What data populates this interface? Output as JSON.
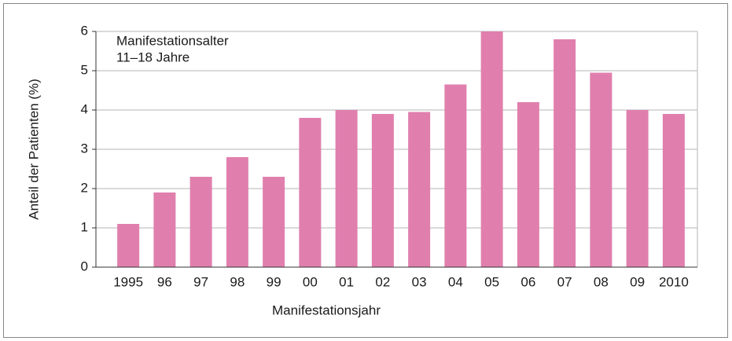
{
  "chart_data": {
    "type": "bar",
    "annotation": [
      "Manifestationsalter",
      "11–18 Jahre"
    ],
    "x_label": "Manifestationsjahr",
    "y_label": "Anteil der Patienten (%)",
    "categories": [
      "1995",
      "96",
      "97",
      "98",
      "99",
      "00",
      "01",
      "02",
      "03",
      "04",
      "05",
      "06",
      "07",
      "08",
      "09",
      "2010"
    ],
    "values": [
      1.1,
      1.9,
      2.3,
      2.8,
      2.3,
      3.8,
      4.0,
      3.9,
      3.95,
      4.65,
      6.0,
      4.2,
      5.8,
      4.95,
      4.0,
      3.9
    ],
    "color": "#e07fae",
    "ylim": [
      0,
      6
    ],
    "yticks": [
      0,
      1,
      2,
      3,
      4,
      5,
      6
    ],
    "grid": true
  }
}
